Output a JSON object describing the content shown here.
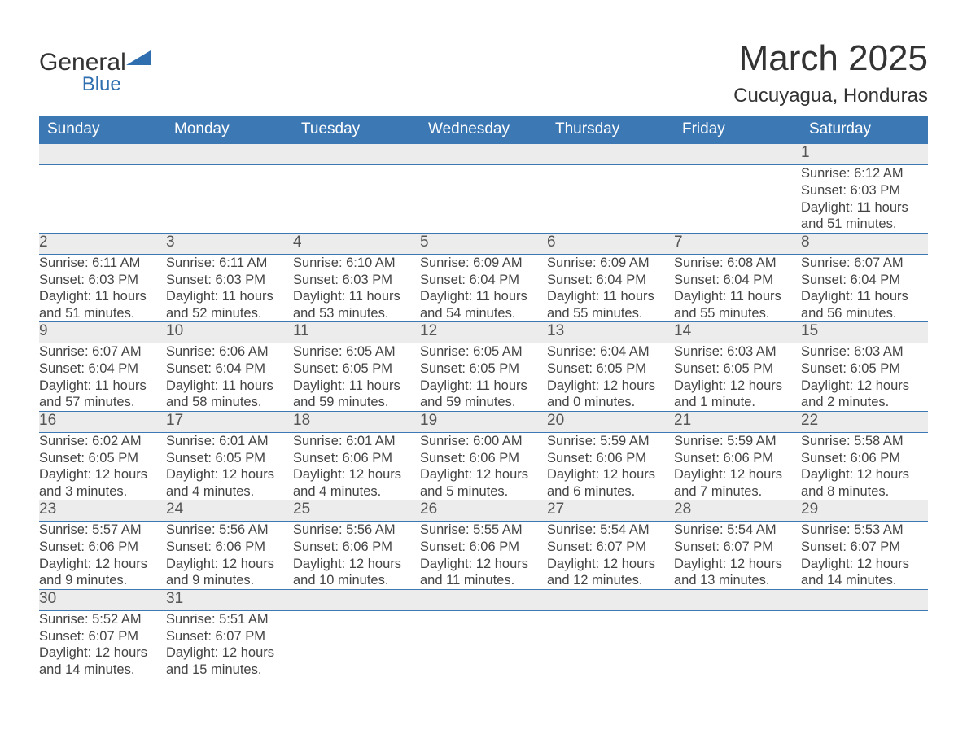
{
  "brand": {
    "name": "General",
    "sub": "Blue",
    "mark_color": "#2f6fb0"
  },
  "title": "March 2025",
  "location": "Cucuyagua, Honduras",
  "header_bg": "#3c78b4",
  "header_text_color": "#ffffff",
  "daynum_bg": "#ececec",
  "border_color": "#3c78b4",
  "text_color": "#444444",
  "weekdays": [
    "Sunday",
    "Monday",
    "Tuesday",
    "Wednesday",
    "Thursday",
    "Friday",
    "Saturday"
  ],
  "weeks": [
    [
      null,
      null,
      null,
      null,
      null,
      null,
      {
        "n": "1",
        "sunrise": "6:12 AM",
        "sunset": "6:03 PM",
        "daylight": "11 hours and 51 minutes."
      }
    ],
    [
      {
        "n": "2",
        "sunrise": "6:11 AM",
        "sunset": "6:03 PM",
        "daylight": "11 hours and 51 minutes."
      },
      {
        "n": "3",
        "sunrise": "6:11 AM",
        "sunset": "6:03 PM",
        "daylight": "11 hours and 52 minutes."
      },
      {
        "n": "4",
        "sunrise": "6:10 AM",
        "sunset": "6:03 PM",
        "daylight": "11 hours and 53 minutes."
      },
      {
        "n": "5",
        "sunrise": "6:09 AM",
        "sunset": "6:04 PM",
        "daylight": "11 hours and 54 minutes."
      },
      {
        "n": "6",
        "sunrise": "6:09 AM",
        "sunset": "6:04 PM",
        "daylight": "11 hours and 55 minutes."
      },
      {
        "n": "7",
        "sunrise": "6:08 AM",
        "sunset": "6:04 PM",
        "daylight": "11 hours and 55 minutes."
      },
      {
        "n": "8",
        "sunrise": "6:07 AM",
        "sunset": "6:04 PM",
        "daylight": "11 hours and 56 minutes."
      }
    ],
    [
      {
        "n": "9",
        "sunrise": "6:07 AM",
        "sunset": "6:04 PM",
        "daylight": "11 hours and 57 minutes."
      },
      {
        "n": "10",
        "sunrise": "6:06 AM",
        "sunset": "6:04 PM",
        "daylight": "11 hours and 58 minutes."
      },
      {
        "n": "11",
        "sunrise": "6:05 AM",
        "sunset": "6:05 PM",
        "daylight": "11 hours and 59 minutes."
      },
      {
        "n": "12",
        "sunrise": "6:05 AM",
        "sunset": "6:05 PM",
        "daylight": "11 hours and 59 minutes."
      },
      {
        "n": "13",
        "sunrise": "6:04 AM",
        "sunset": "6:05 PM",
        "daylight": "12 hours and 0 minutes."
      },
      {
        "n": "14",
        "sunrise": "6:03 AM",
        "sunset": "6:05 PM",
        "daylight": "12 hours and 1 minute."
      },
      {
        "n": "15",
        "sunrise": "6:03 AM",
        "sunset": "6:05 PM",
        "daylight": "12 hours and 2 minutes."
      }
    ],
    [
      {
        "n": "16",
        "sunrise": "6:02 AM",
        "sunset": "6:05 PM",
        "daylight": "12 hours and 3 minutes."
      },
      {
        "n": "17",
        "sunrise": "6:01 AM",
        "sunset": "6:05 PM",
        "daylight": "12 hours and 4 minutes."
      },
      {
        "n": "18",
        "sunrise": "6:01 AM",
        "sunset": "6:06 PM",
        "daylight": "12 hours and 4 minutes."
      },
      {
        "n": "19",
        "sunrise": "6:00 AM",
        "sunset": "6:06 PM",
        "daylight": "12 hours and 5 minutes."
      },
      {
        "n": "20",
        "sunrise": "5:59 AM",
        "sunset": "6:06 PM",
        "daylight": "12 hours and 6 minutes."
      },
      {
        "n": "21",
        "sunrise": "5:59 AM",
        "sunset": "6:06 PM",
        "daylight": "12 hours and 7 minutes."
      },
      {
        "n": "22",
        "sunrise": "5:58 AM",
        "sunset": "6:06 PM",
        "daylight": "12 hours and 8 minutes."
      }
    ],
    [
      {
        "n": "23",
        "sunrise": "5:57 AM",
        "sunset": "6:06 PM",
        "daylight": "12 hours and 9 minutes."
      },
      {
        "n": "24",
        "sunrise": "5:56 AM",
        "sunset": "6:06 PM",
        "daylight": "12 hours and 9 minutes."
      },
      {
        "n": "25",
        "sunrise": "5:56 AM",
        "sunset": "6:06 PM",
        "daylight": "12 hours and 10 minutes."
      },
      {
        "n": "26",
        "sunrise": "5:55 AM",
        "sunset": "6:06 PM",
        "daylight": "12 hours and 11 minutes."
      },
      {
        "n": "27",
        "sunrise": "5:54 AM",
        "sunset": "6:07 PM",
        "daylight": "12 hours and 12 minutes."
      },
      {
        "n": "28",
        "sunrise": "5:54 AM",
        "sunset": "6:07 PM",
        "daylight": "12 hours and 13 minutes."
      },
      {
        "n": "29",
        "sunrise": "5:53 AM",
        "sunset": "6:07 PM",
        "daylight": "12 hours and 14 minutes."
      }
    ],
    [
      {
        "n": "30",
        "sunrise": "5:52 AM",
        "sunset": "6:07 PM",
        "daylight": "12 hours and 14 minutes."
      },
      {
        "n": "31",
        "sunrise": "5:51 AM",
        "sunset": "6:07 PM",
        "daylight": "12 hours and 15 minutes."
      },
      null,
      null,
      null,
      null,
      null
    ]
  ],
  "labels": {
    "sunrise": "Sunrise: ",
    "sunset": "Sunset: ",
    "daylight": "Daylight: "
  }
}
